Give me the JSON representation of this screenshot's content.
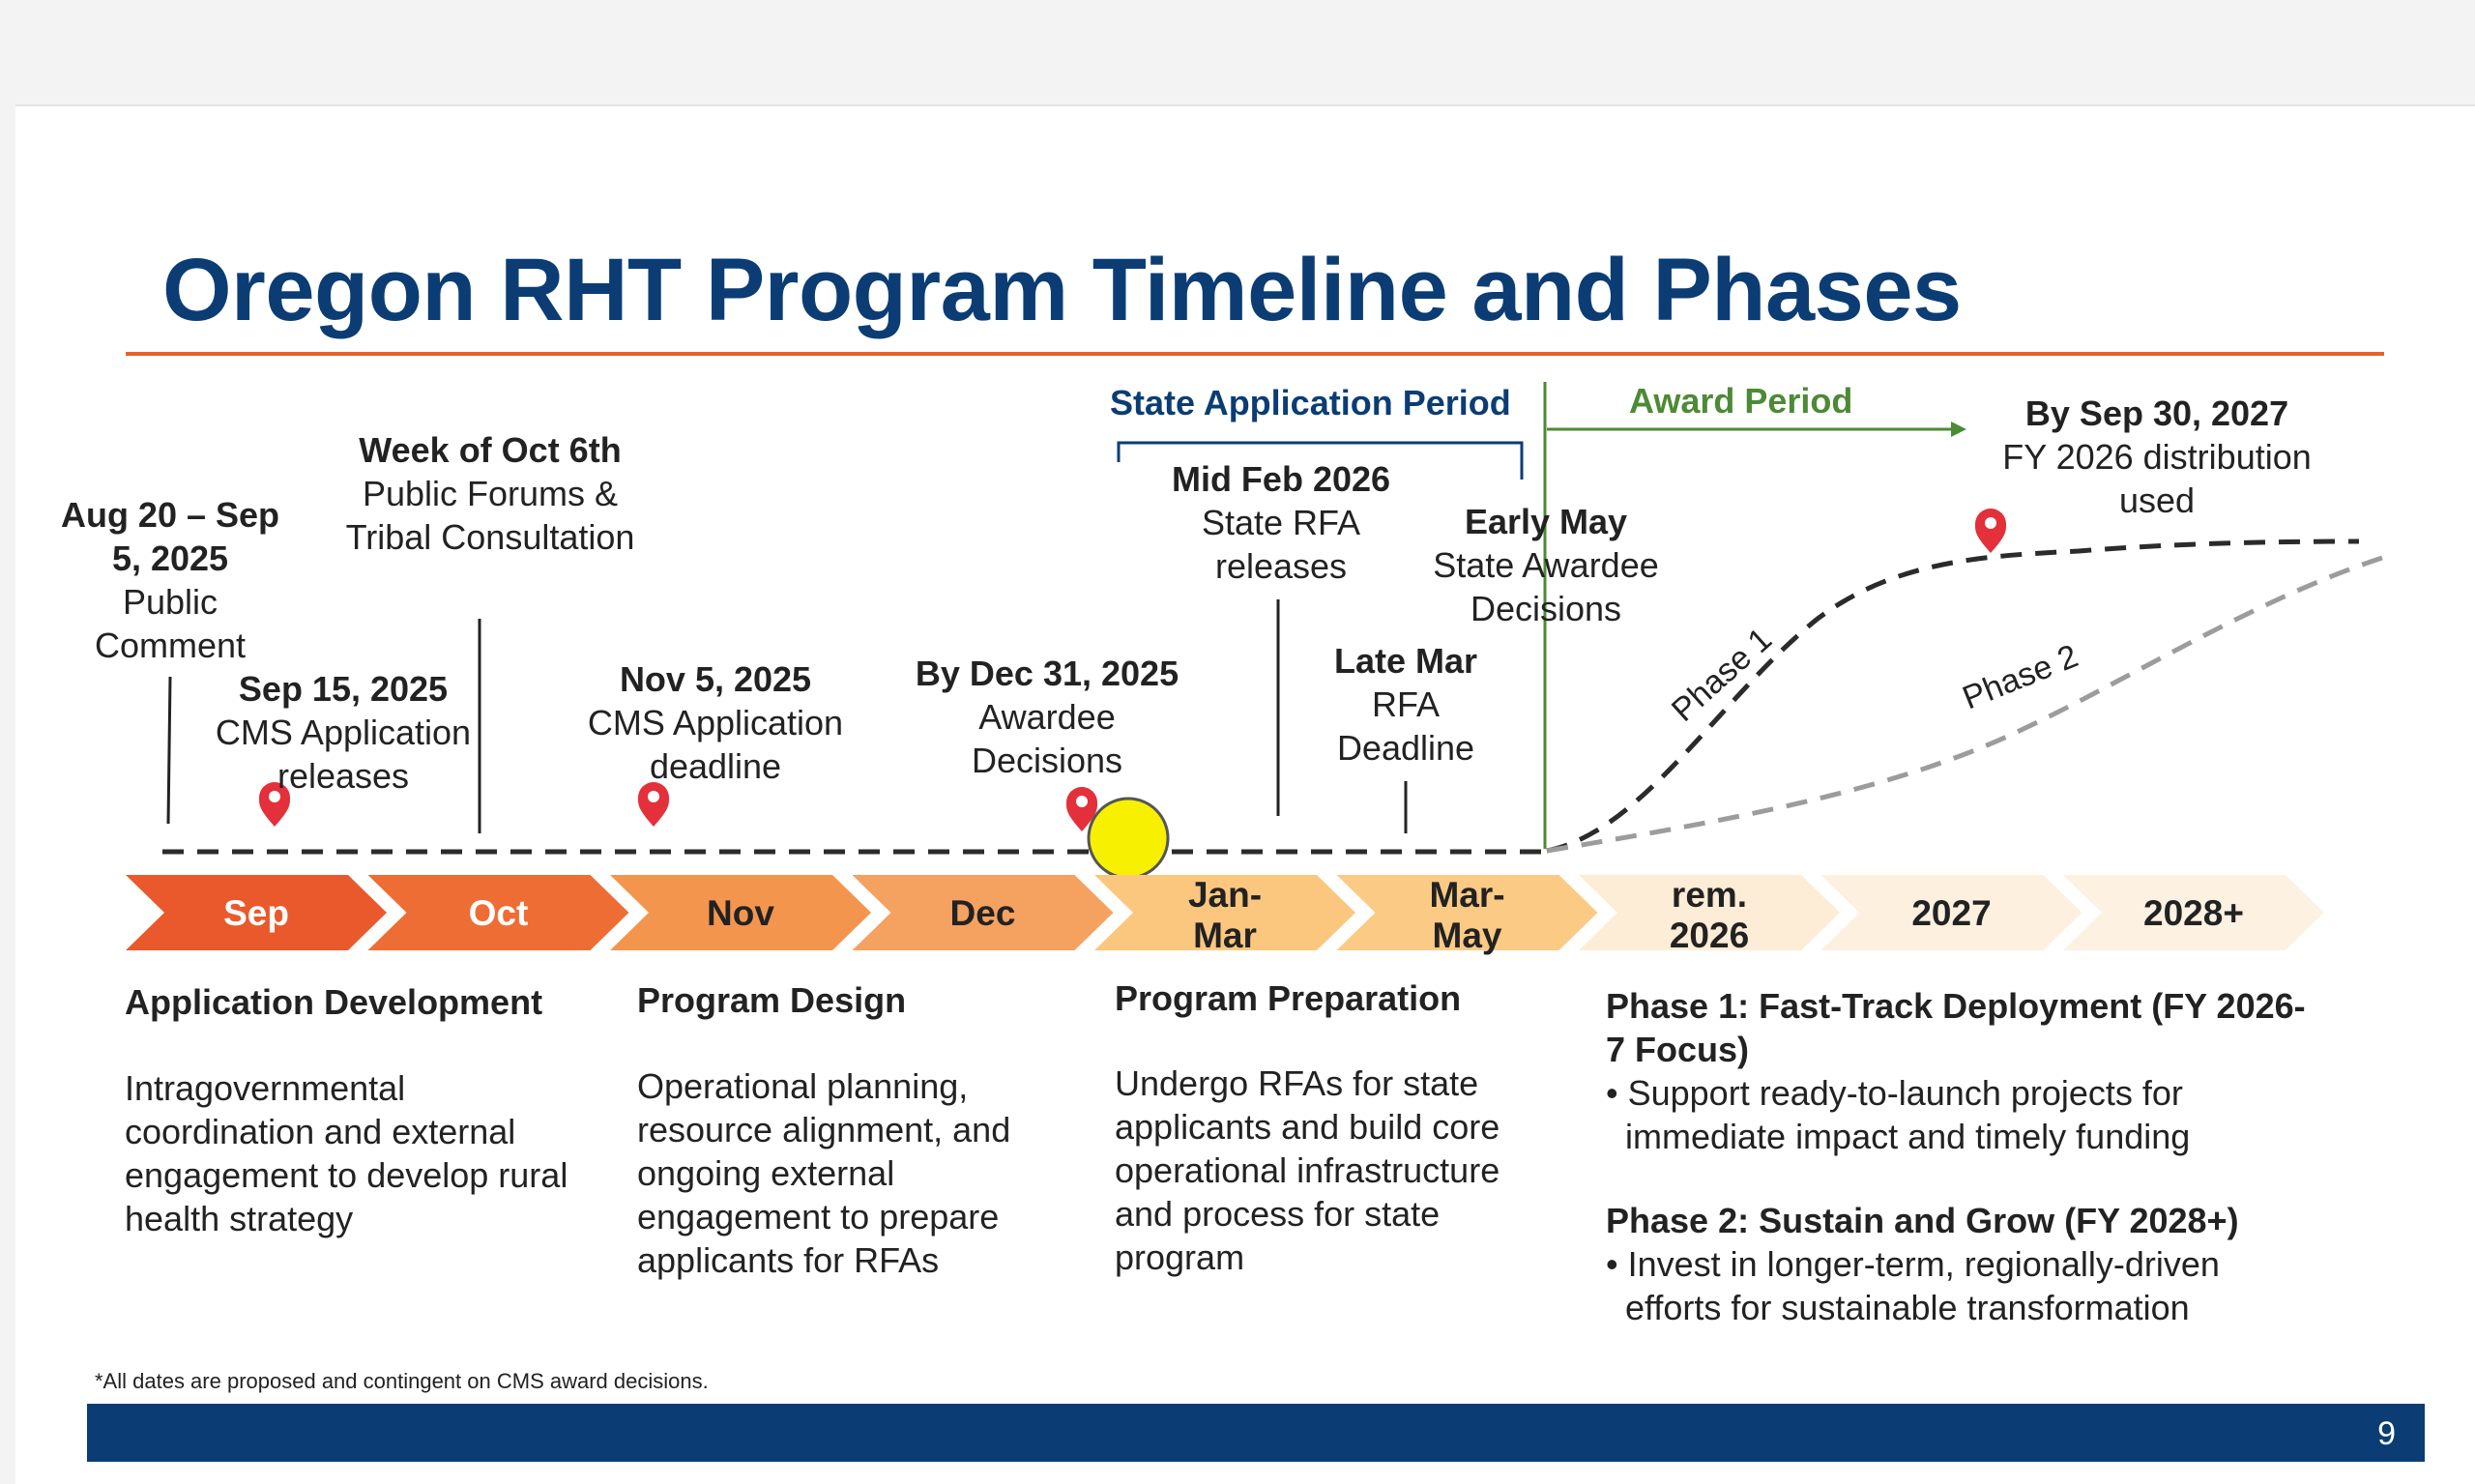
{
  "title": "Oregon RHT Program Timeline and Phases",
  "periods": {
    "state_application": "State Application Period",
    "award": "Award Period"
  },
  "milestones": [
    {
      "date": "Aug 20 – Sep 5, 2025",
      "desc": "Public Comment"
    },
    {
      "date": "Sep 15, 2025",
      "desc": "CMS Application releases"
    },
    {
      "date": "Week of Oct 6th",
      "desc": "Public Forums & Tribal Consultation"
    },
    {
      "date": "Nov 5, 2025",
      "desc": "CMS Application deadline"
    },
    {
      "date": "By Dec 31, 2025",
      "desc": "Awardee Decisions"
    },
    {
      "date": "Mid Feb 2026",
      "desc": "State RFA releases"
    },
    {
      "date": "Late Mar",
      "desc": "RFA Deadline"
    },
    {
      "date": "Early May",
      "desc": "State Awardee Decisions"
    },
    {
      "date": "By Sep 30, 2027",
      "desc": "FY 2026 distribution used"
    }
  ],
  "curves": {
    "phase1": "Phase 1",
    "phase2": "Phase 2"
  },
  "arrows": [
    {
      "label1": "Sep",
      "label2": "",
      "fill": "#e9592c",
      "text": "#ffffff"
    },
    {
      "label1": "Oct",
      "label2": "",
      "fill": "#ee6d34",
      "text": "#ffffff"
    },
    {
      "label1": "Nov",
      "label2": "",
      "fill": "#f4954e",
      "text": "#222222"
    },
    {
      "label1": "Dec",
      "label2": "",
      "fill": "#f5a160",
      "text": "#222222"
    },
    {
      "label1": "Jan-",
      "label2": "Mar",
      "fill": "#fbc77f",
      "text": "#222222"
    },
    {
      "label1": "Mar-",
      "label2": "May",
      "fill": "#fbca84",
      "text": "#222222"
    },
    {
      "label1": "rem.",
      "label2": "2026",
      "fill": "#fdecd6",
      "text": "#222222"
    },
    {
      "label1": "2027",
      "label2": "",
      "fill": "#fdf0df",
      "text": "#222222"
    },
    {
      "label1": "2028+",
      "label2": "",
      "fill": "#fdf1e2",
      "text": "#222222"
    }
  ],
  "phases": [
    {
      "heading": "Application Development",
      "body": "Intragovernmental coordination and external engagement to develop rural health strategy"
    },
    {
      "heading": "Program Design",
      "body": "Operational planning, resource alignment, and ongoing external engagement to prepare applicants for RFAs"
    },
    {
      "heading": "Program Preparation",
      "body": "Undergo RFAs for state applicants and build core operational infrastructure and process for state program"
    }
  ],
  "phase_plan": {
    "p1_heading": "Phase 1: Fast-Track Deployment (FY 2026-7 Focus)",
    "p1_bullet": "Support ready-to-launch projects for immediate impact and timely funding",
    "p2_heading": "Phase 2: Sustain and Grow (FY 2028+)",
    "p2_bullet": "Invest in longer-term, regionally-driven efforts for sustainable transformation"
  },
  "footnote": "*All dates are proposed and contingent on CMS award decisions.",
  "page_number": "9"
}
